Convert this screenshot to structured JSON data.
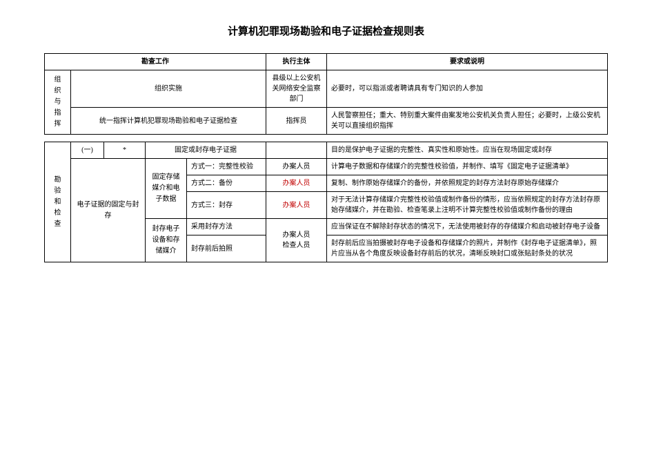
{
  "title": "计算机犯罪现场勘验和电子证据检查规则表",
  "headers": {
    "work": "勘查工作",
    "executor": "执行主体",
    "desc": "要求或说明"
  },
  "section1": {
    "label": "组织与指挥",
    "rows": [
      {
        "work": "组织实施",
        "executor": "县级以上公安机关网络安全监察部门",
        "desc": "必要时，可以指派或者聘请具有专门知识的人参加"
      },
      {
        "work": "统一指挥计算机犯罪现场勘验和电子证据检查",
        "executor": "指挥员",
        "desc": "人民警察担任；重大、特别重大案件由案发地公安机关负责人担任；必要时，上级公安机关可以直接组织指挥"
      }
    ]
  },
  "section2": {
    "label": "勘验和检查",
    "group": {
      "index": "(一)",
      "star": "*",
      "title": "固定或封存电子证据",
      "title_desc": "目的是保护电子证据的完整性、真实性和原始性。应当在现场固定或封存",
      "sub_label": "电子证据的固定与封存"
    },
    "subgroup1": {
      "label": "固定存储媒介和电子数据",
      "rows": [
        {
          "method": "方式一：完整性校验",
          "executor": "办案人员",
          "executor_red": false,
          "desc": "计算电子数据和存储媒介的完整性校验值，并制作、填写《固定电子证据清单》"
        },
        {
          "method": "方式二：备份",
          "executor": "办案人员",
          "executor_red": true,
          "desc": "复制、制作原始存储媒介的备份，并依照规定的封存方法封存原始存储媒介"
        },
        {
          "method": "方式三：封存",
          "executor": "办案人员",
          "executor_red": true,
          "desc": "对于无法计算存储媒介完整性校验值或制作备份的情形，应当依照规定的封存方法封存原始存储媒介，并在勘验、检查笔录上注明不计算完整性校验值或制作备份的理由"
        }
      ]
    },
    "subgroup2": {
      "label": "封存电子设备和存储媒介",
      "executor": "办案人员检查人员",
      "rows": [
        {
          "method": "采用封存方法",
          "desc": "应当保证在不解除封存状态的情况下，无法使用被封存的存储媒介和启动被封存电子设备"
        },
        {
          "method": "封存前后拍照",
          "desc": "封存前后应当拍摄被封存电子设备和存储媒介的照片，并制作《封存电子证据清单》，照片应当从各个角度反映设备封存前后的状况，清晰反映封口或张贴封条处的状况"
        }
      ]
    }
  }
}
